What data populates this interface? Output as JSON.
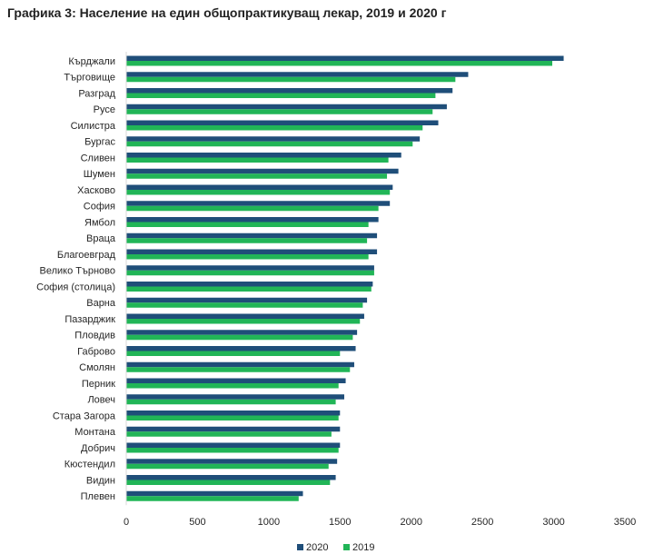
{
  "title": "Графика 3: Население на един общопрактикуващ лекар, 2019 и 2020 г",
  "chart_data": {
    "type": "bar",
    "orientation": "horizontal",
    "title": "Графика 3: Население на един общопрактикуващ лекар, 2019 и 2020 г",
    "categories": [
      "Кърджали",
      "Търговище",
      "Разград",
      "Русе",
      "Силистра",
      "Бургас",
      "Сливен",
      "Шумен",
      "Хасково",
      "София",
      "Ямбол",
      "Враца",
      "Благоевград",
      "Велико Търново",
      "София (столица)",
      "Варна",
      "Пазарджик",
      "Пловдив",
      "Габрово",
      "Смолян",
      "Перник",
      "Ловеч",
      "Стара Загора",
      "Монтана",
      "Добрич",
      "Кюстендил",
      "Видин",
      "Плевен"
    ],
    "series": [
      {
        "name": "2020",
        "color": "#1f4e79",
        "values": [
          3070,
          2400,
          2290,
          2250,
          2190,
          2060,
          1930,
          1910,
          1870,
          1850,
          1770,
          1760,
          1760,
          1740,
          1730,
          1690,
          1670,
          1620,
          1610,
          1600,
          1540,
          1530,
          1500,
          1500,
          1500,
          1480,
          1470,
          1240
        ]
      },
      {
        "name": "2019",
        "color": "#21b557",
        "values": [
          2990,
          2310,
          2170,
          2150,
          2080,
          2010,
          1840,
          1830,
          1850,
          1770,
          1700,
          1690,
          1700,
          1740,
          1720,
          1660,
          1640,
          1590,
          1500,
          1570,
          1490,
          1470,
          1490,
          1440,
          1490,
          1420,
          1430,
          1210
        ]
      }
    ],
    "xlim": [
      0,
      3500
    ],
    "xticks": [
      0,
      500,
      1000,
      1500,
      2000,
      2500,
      3000,
      3500
    ],
    "legend": "bottom-center",
    "grid": false
  }
}
